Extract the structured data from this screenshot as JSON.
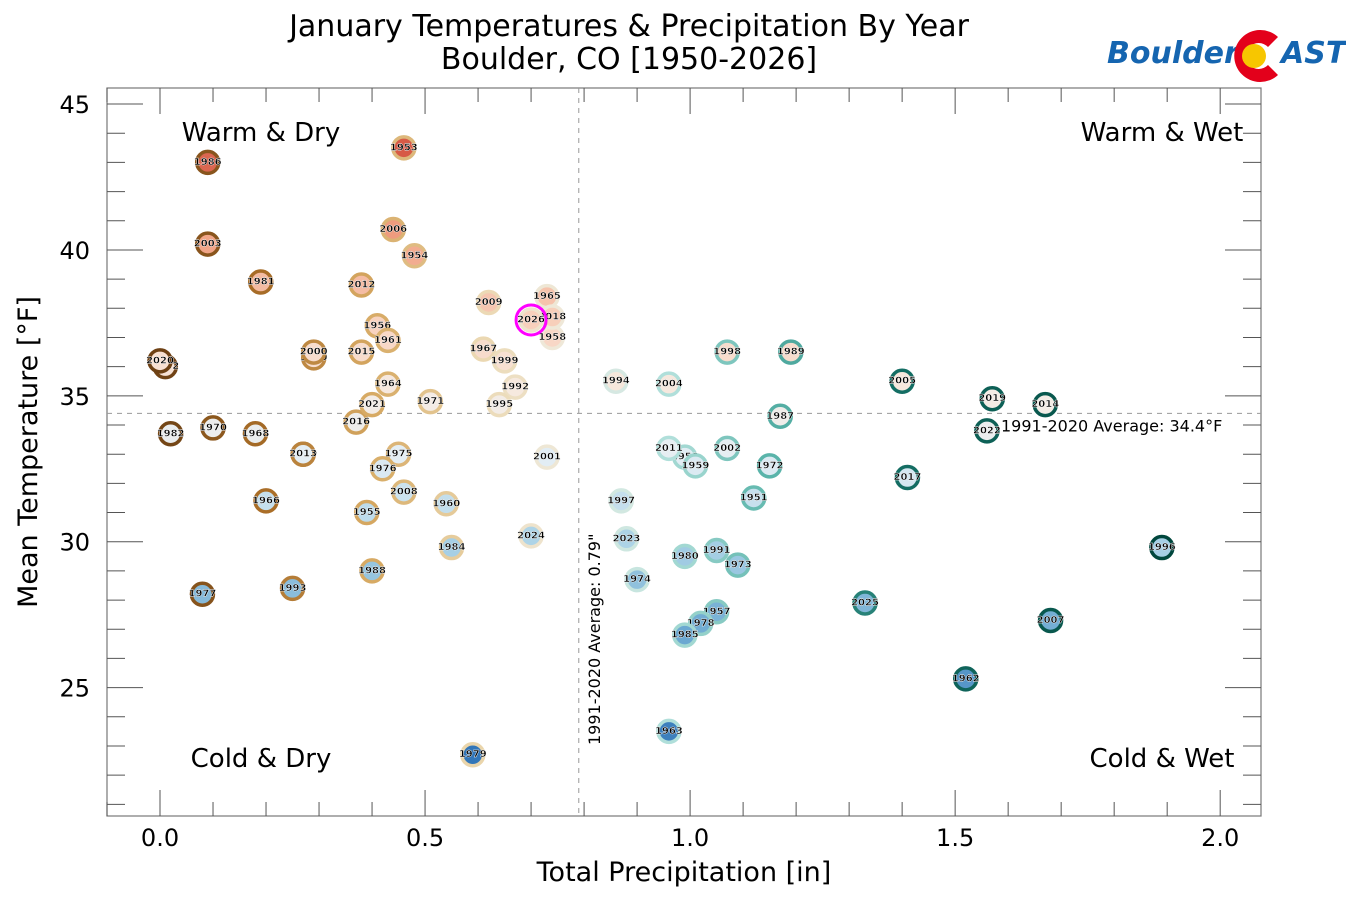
{
  "chart_data": {
    "type": "scatter",
    "title": "January Temperatures & Precipitation By Year",
    "subtitle": "Boulder, CO [1950-2026]",
    "xlabel": "Total Precipitation [in]",
    "ylabel": "Mean Temperature [°F]",
    "xlim": [
      -0.1,
      2.077
    ],
    "ylim": [
      20.6,
      45.55
    ],
    "x_ticks": [
      0.0,
      0.5,
      1.0,
      1.5,
      2.0
    ],
    "x_tick_labels": [
      "0.0",
      "0.5",
      "1.0",
      "1.5",
      "2.0"
    ],
    "y_ticks": [
      25,
      30,
      35,
      40,
      45
    ],
    "y_tick_labels": [
      "25",
      "30",
      "35",
      "40",
      "45"
    ],
    "grid": false,
    "quadrant_labels": {
      "top_left": "Warm & Dry",
      "top_right": "Warm & Wet",
      "bottom_left": "Cold & Dry",
      "bottom_right": "Cold & Wet"
    },
    "reference_lines": {
      "precip_avg": 0.79,
      "precip_avg_label": "1991-2020 Average: 0.79\"",
      "temp_avg": 34.4,
      "temp_avg_label": "1991-2020 Average: 34.4°F"
    },
    "highlight_year": "2026",
    "highlight_color": "#ff00ff",
    "points": [
      {
        "year": "1950",
        "x": 0.99,
        "y": 32.9
      },
      {
        "year": "1951",
        "x": 1.12,
        "y": 31.5
      },
      {
        "year": "1952",
        "x": 0.01,
        "y": 36.0
      },
      {
        "year": "1953",
        "x": 0.46,
        "y": 43.5
      },
      {
        "year": "1954",
        "x": 0.48,
        "y": 39.8
      },
      {
        "year": "1955",
        "x": 0.39,
        "y": 31.0
      },
      {
        "year": "1956",
        "x": 0.41,
        "y": 37.4
      },
      {
        "year": "1957",
        "x": 1.05,
        "y": 27.6
      },
      {
        "year": "1958",
        "x": 0.74,
        "y": 37.0
      },
      {
        "year": "1959",
        "x": 1.01,
        "y": 32.6
      },
      {
        "year": "1960",
        "x": 0.54,
        "y": 31.3
      },
      {
        "year": "1961",
        "x": 0.43,
        "y": 36.9
      },
      {
        "year": "1962",
        "x": 1.52,
        "y": 25.3
      },
      {
        "year": "1963",
        "x": 0.96,
        "y": 23.5
      },
      {
        "year": "1964",
        "x": 0.43,
        "y": 35.4
      },
      {
        "year": "1965",
        "x": 0.73,
        "y": 38.4
      },
      {
        "year": "1966",
        "x": 0.2,
        "y": 31.4
      },
      {
        "year": "1967",
        "x": 0.61,
        "y": 36.6
      },
      {
        "year": "1968",
        "x": 0.18,
        "y": 33.7
      },
      {
        "year": "1969",
        "x": 0.29,
        "y": 36.3
      },
      {
        "year": "1970",
        "x": 0.1,
        "y": 33.9
      },
      {
        "year": "1971",
        "x": 0.51,
        "y": 34.8
      },
      {
        "year": "1972",
        "x": 1.15,
        "y": 32.6
      },
      {
        "year": "1973",
        "x": 1.09,
        "y": 29.2
      },
      {
        "year": "1974",
        "x": 0.9,
        "y": 28.7
      },
      {
        "year": "1975",
        "x": 0.45,
        "y": 33.0
      },
      {
        "year": "1976",
        "x": 0.42,
        "y": 32.5
      },
      {
        "year": "1977",
        "x": 0.08,
        "y": 28.2
      },
      {
        "year": "1978",
        "x": 1.02,
        "y": 27.2
      },
      {
        "year": "1979",
        "x": 0.59,
        "y": 22.7
      },
      {
        "year": "1980",
        "x": 0.99,
        "y": 29.5
      },
      {
        "year": "1981",
        "x": 0.19,
        "y": 38.9
      },
      {
        "year": "1982",
        "x": 0.02,
        "y": 33.7
      },
      {
        "year": "1984",
        "x": 0.55,
        "y": 29.8
      },
      {
        "year": "1985",
        "x": 0.99,
        "y": 26.8
      },
      {
        "year": "1986",
        "x": 0.09,
        "y": 43.0
      },
      {
        "year": "1987",
        "x": 1.17,
        "y": 34.3
      },
      {
        "year": "1988",
        "x": 0.4,
        "y": 29.0
      },
      {
        "year": "1989",
        "x": 1.19,
        "y": 36.5
      },
      {
        "year": "1991",
        "x": 1.05,
        "y": 29.7
      },
      {
        "year": "1992",
        "x": 0.67,
        "y": 35.3
      },
      {
        "year": "1993",
        "x": 0.25,
        "y": 28.4
      },
      {
        "year": "1994",
        "x": 0.86,
        "y": 35.5
      },
      {
        "year": "1995",
        "x": 0.64,
        "y": 34.7
      },
      {
        "year": "1996",
        "x": 1.89,
        "y": 29.8
      },
      {
        "year": "1997",
        "x": 0.87,
        "y": 31.4
      },
      {
        "year": "1998",
        "x": 1.07,
        "y": 36.5
      },
      {
        "year": "1999",
        "x": 0.65,
        "y": 36.2
      },
      {
        "year": "2000",
        "x": 0.29,
        "y": 36.5
      },
      {
        "year": "2001",
        "x": 0.73,
        "y": 32.9
      },
      {
        "year": "2002",
        "x": 1.07,
        "y": 33.2
      },
      {
        "year": "2003",
        "x": 0.09,
        "y": 40.2
      },
      {
        "year": "2004",
        "x": 0.96,
        "y": 35.4
      },
      {
        "year": "2005",
        "x": 1.4,
        "y": 35.5
      },
      {
        "year": "2006",
        "x": 0.44,
        "y": 40.7
      },
      {
        "year": "2007",
        "x": 1.68,
        "y": 27.3
      },
      {
        "year": "2008",
        "x": 0.46,
        "y": 31.7
      },
      {
        "year": "2009",
        "x": 0.62,
        "y": 38.2
      },
      {
        "year": "2010",
        "x": 0.27,
        "y": 33.0
      },
      {
        "year": "2011",
        "x": 0.96,
        "y": 33.2
      },
      {
        "year": "2012",
        "x": 0.38,
        "y": 38.8
      },
      {
        "year": "2013",
        "x": 0.27,
        "y": 33.0
      },
      {
        "year": "2014",
        "x": 1.67,
        "y": 34.7
      },
      {
        "year": "2015",
        "x": 0.38,
        "y": 36.5
      },
      {
        "year": "2016",
        "x": 0.37,
        "y": 34.1
      },
      {
        "year": "2017",
        "x": 1.41,
        "y": 32.2
      },
      {
        "year": "2018",
        "x": 0.74,
        "y": 37.7
      },
      {
        "year": "2019",
        "x": 1.57,
        "y": 34.9
      },
      {
        "year": "2020",
        "x": 0.0,
        "y": 36.2
      },
      {
        "year": "2021",
        "x": 0.4,
        "y": 34.7
      },
      {
        "year": "2022",
        "x": 1.56,
        "y": 33.8
      },
      {
        "year": "2023",
        "x": 0.88,
        "y": 30.1
      },
      {
        "year": "2024",
        "x": 0.7,
        "y": 30.2
      },
      {
        "year": "2025",
        "x": 1.33,
        "y": 27.9
      },
      {
        "year": "2026",
        "x": 0.7,
        "y": 37.6
      }
    ]
  },
  "logo": {
    "text_left": "Boulder",
    "text_right": "AST",
    "colors": {
      "blue": "#1565b0",
      "red": "#e3001b",
      "yellow": "#f7c600"
    }
  }
}
